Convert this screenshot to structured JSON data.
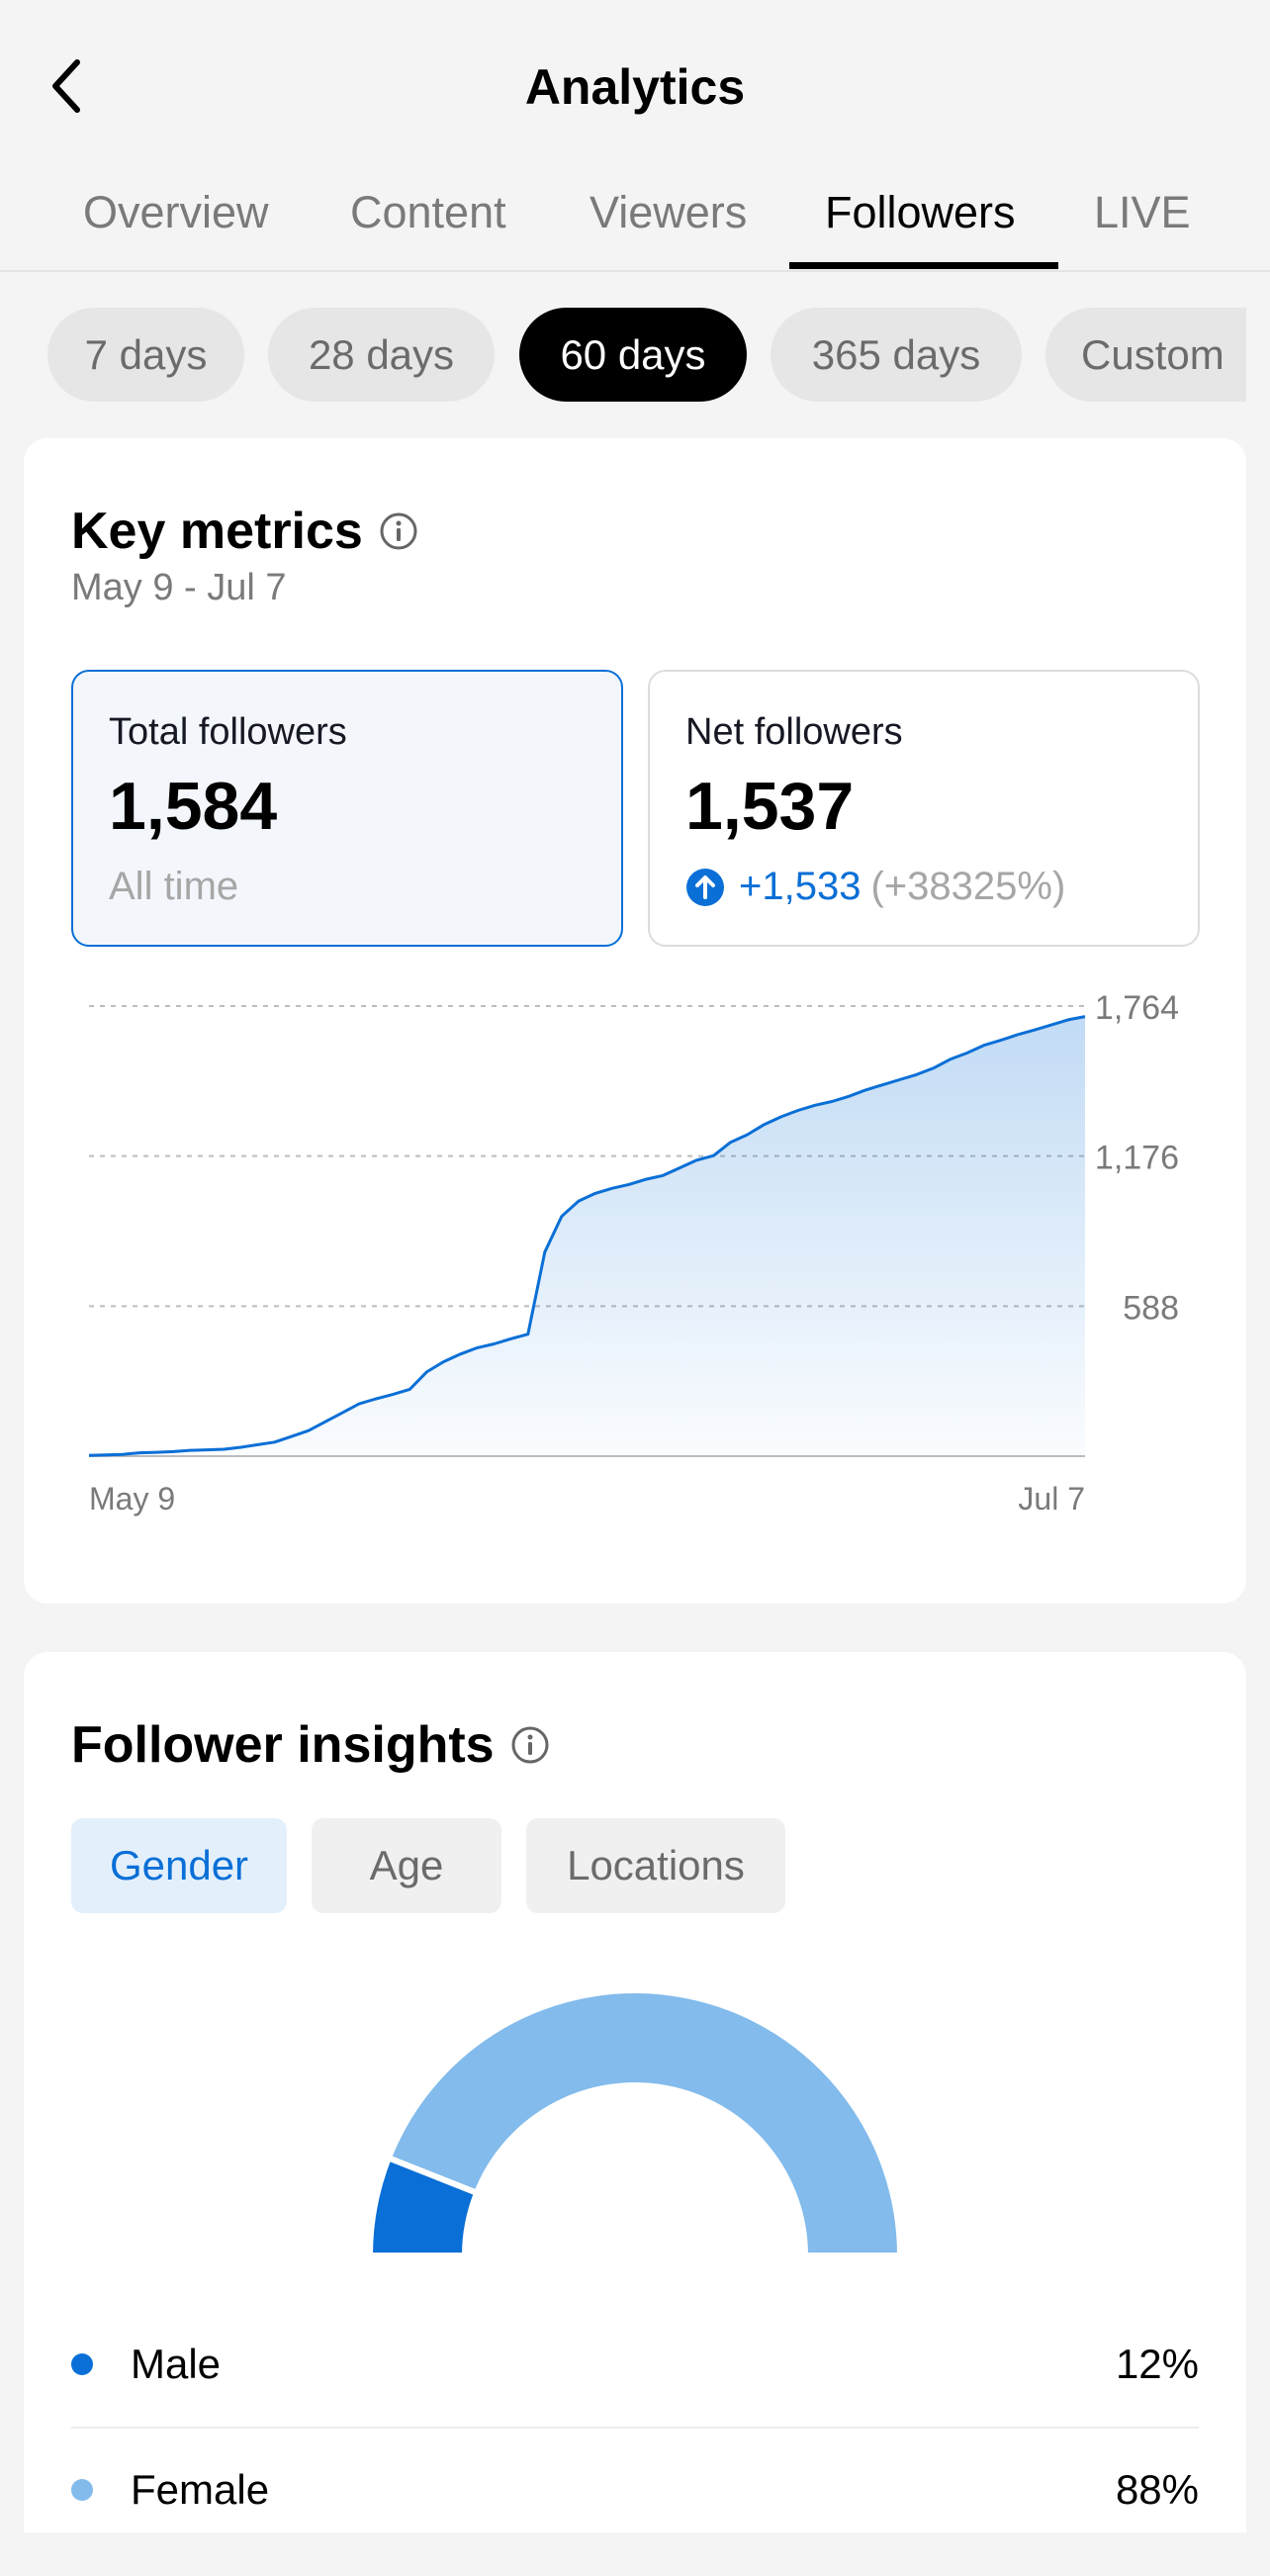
{
  "header": {
    "title": "Analytics"
  },
  "tabs": [
    {
      "label": "Overview"
    },
    {
      "label": "Content"
    },
    {
      "label": "Viewers"
    },
    {
      "label": "Followers",
      "active": true
    },
    {
      "label": "LIVE"
    }
  ],
  "ranges": [
    {
      "label": "7 days"
    },
    {
      "label": "28 days"
    },
    {
      "label": "60 days",
      "active": true
    },
    {
      "label": "365 days"
    },
    {
      "label": "Custom"
    }
  ],
  "key_metrics": {
    "title": "Key metrics",
    "date_range": "May 9 - Jul 7",
    "total": {
      "label": "Total followers",
      "value": "1,584",
      "sub": "All time"
    },
    "net": {
      "label": "Net followers",
      "value": "1,537",
      "change_abs": "+1,533",
      "change_pct": "(+38325%)"
    }
  },
  "chart_data": {
    "type": "area",
    "x_start_label": "May 9",
    "x_end_label": "Jul 7",
    "yticks": [
      588,
      1176,
      1764
    ],
    "ytick_labels": [
      "588",
      "1,176",
      "1,764"
    ],
    "ylim": [
      0,
      1764
    ],
    "grid": true,
    "line_color": "#0a6fd6",
    "values": [
      3,
      5,
      7,
      13,
      15,
      18,
      23,
      25,
      27,
      35,
      45,
      55,
      77,
      100,
      135,
      170,
      205,
      225,
      242,
      262,
      330,
      370,
      400,
      425,
      440,
      460,
      478,
      800,
      940,
      1000,
      1030,
      1050,
      1065,
      1085,
      1100,
      1130,
      1160,
      1178,
      1230,
      1260,
      1300,
      1330,
      1355,
      1375,
      1390,
      1410,
      1435,
      1455,
      1475,
      1495,
      1520,
      1555,
      1580,
      1610,
      1630,
      1652,
      1670,
      1690,
      1710,
      1723
    ]
  },
  "insights": {
    "title": "Follower insights",
    "segments": [
      {
        "label": "Gender",
        "active": true
      },
      {
        "label": "Age"
      },
      {
        "label": "Locations"
      }
    ],
    "gender": [
      {
        "label": "Male",
        "value": "12%",
        "percent": 12,
        "color": "#0a6fd6"
      },
      {
        "label": "Female",
        "value": "88%",
        "percent": 88,
        "color": "#82bbec"
      }
    ]
  },
  "colors": {
    "accent": "#0a6fd6",
    "accent_light": "#82bbec",
    "background": "#f4f4f4"
  }
}
